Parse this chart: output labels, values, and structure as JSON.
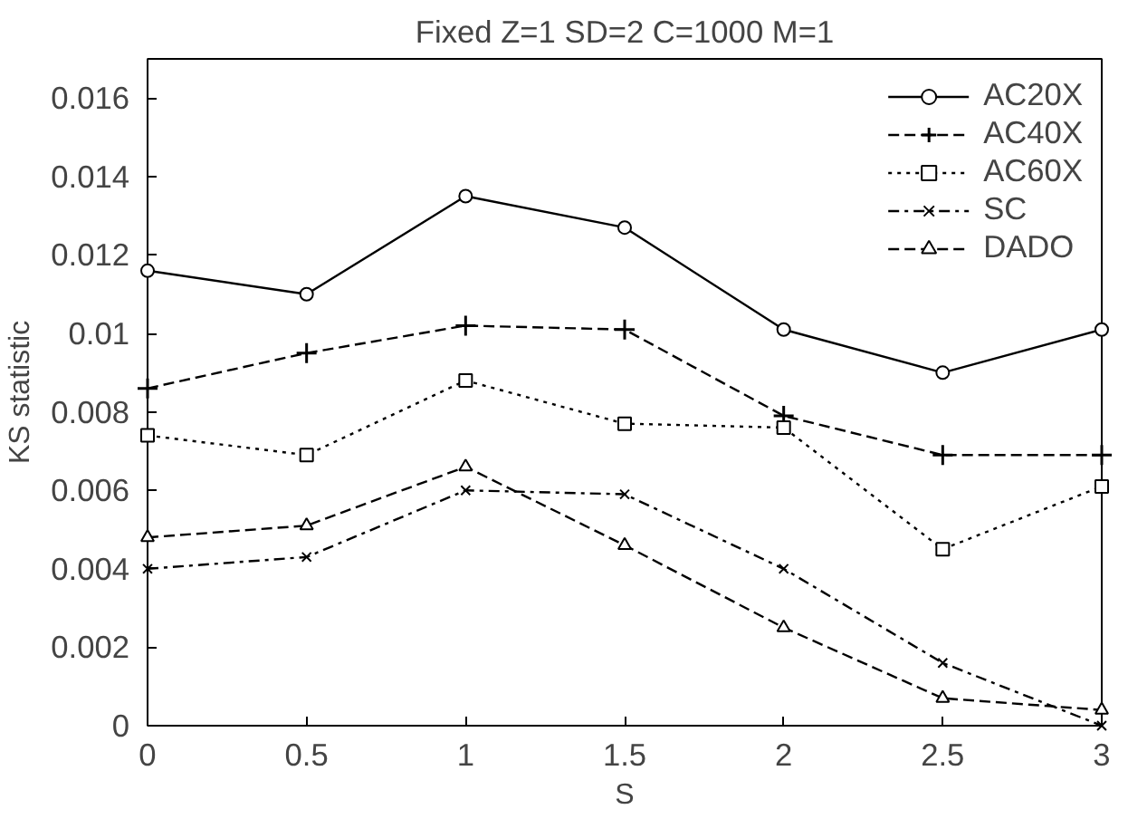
{
  "chart_data": {
    "type": "line",
    "title": "Fixed Z=1 SD=2 C=1000 M=1",
    "xlabel": "S",
    "ylabel": "KS statistic",
    "x": [
      0,
      0.5,
      1,
      1.5,
      2,
      2.5,
      3
    ],
    "xlim": [
      0,
      3
    ],
    "xticks": [
      0,
      {
        "value": 0.5,
        "label": "0.5"
      },
      1,
      {
        "value": 1.5,
        "label": "1.5"
      },
      2,
      {
        "value": 2.5,
        "label": "2.5"
      },
      3
    ],
    "ylim": [
      0,
      0.017
    ],
    "yticks": [
      0,
      0.002,
      0.004,
      0.006,
      0.008,
      0.01,
      0.012,
      0.014,
      0.016
    ],
    "grid": false,
    "legend": "top right",
    "series": [
      {
        "name": "AC20X",
        "color": "#000000",
        "marker": "circle",
        "line_style": "solid",
        "values": [
          0.0116,
          0.011,
          0.0135,
          0.0127,
          0.0101,
          0.009,
          0.0101
        ]
      },
      {
        "name": "AC40X",
        "color": "#000000",
        "marker": "cross",
        "line_style": "dashed",
        "values": [
          0.0086,
          0.0095,
          0.0102,
          0.0101,
          0.0079,
          0.0069,
          0.0069
        ]
      },
      {
        "name": "AC60X",
        "color": "#000000",
        "marker": "square",
        "line_style": "dotted",
        "values": [
          0.0074,
          0.0069,
          0.0088,
          0.0077,
          0.0076,
          0.0045,
          0.0061
        ]
      },
      {
        "name": "SC",
        "color": "#000000",
        "marker": "x",
        "line_style": "dashdot",
        "values": [
          0.004,
          0.0043,
          0.006,
          0.0059,
          0.004,
          0.0016,
          0
        ]
      },
      {
        "name": "DADO",
        "color": "#000000",
        "marker": "triangle",
        "line_style": "dashed",
        "values": [
          0.0048,
          0.0051,
          0.0066,
          0.0046,
          0.0025,
          0.0007,
          0.0004
        ]
      }
    ]
  }
}
